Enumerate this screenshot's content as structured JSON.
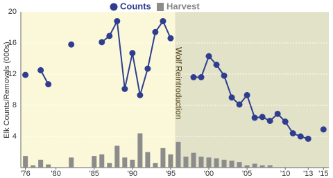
{
  "chart_data": {
    "type": "combo",
    "ylabel": "Elk Counts/Removals (000s)",
    "x": [
      1976,
      1977,
      1978,
      1979,
      1980,
      1981,
      1982,
      1983,
      1984,
      1985,
      1986,
      1987,
      1988,
      1989,
      1990,
      1991,
      1992,
      1993,
      1994,
      1995,
      1996,
      1997,
      1998,
      1999,
      2000,
      2001,
      2002,
      2003,
      2004,
      2005,
      2006,
      2007,
      2008,
      2009,
      2010,
      2011,
      2012,
      2013,
      2014,
      2015
    ],
    "series": [
      {
        "name": "Counts",
        "kind": "line",
        "color": "#2f3d91",
        "values": [
          11.9,
          null,
          12.5,
          10.7,
          null,
          null,
          15.8,
          null,
          null,
          null,
          16.1,
          16.9,
          18.8,
          10.1,
          14.7,
          9.3,
          12.7,
          17.4,
          18.8,
          16.6,
          null,
          null,
          11.6,
          11.6,
          14.3,
          13.2,
          11.8,
          9.0,
          8.1,
          9.3,
          6.4,
          6.5,
          6.0,
          6.9,
          5.9,
          4.4,
          4.0,
          3.7,
          null,
          4.9
        ]
      },
      {
        "name": "Harvest",
        "kind": "bar",
        "color": "#8c8c8c",
        "values": [
          1.5,
          0.3,
          1.0,
          0.4,
          null,
          null,
          1.3,
          null,
          null,
          1.5,
          1.7,
          0.6,
          2.8,
          1.3,
          1.0,
          4.4,
          2.0,
          0.6,
          2.5,
          1.7,
          3.3,
          1.4,
          1.9,
          1.4,
          1.3,
          1.2,
          1.0,
          0.9,
          0.7,
          0.3,
          0.5,
          0.3,
          0.3,
          null,
          null,
          null,
          null,
          null,
          null,
          null
        ]
      }
    ],
    "annotation": {
      "text": "Wolf Reintroduction",
      "x": 1995.6
    },
    "xlim": [
      1975.4,
      2015.7
    ],
    "xticks": [
      {
        "value": 1976,
        "label": "'76"
      },
      {
        "value": 1980,
        "label": "'80"
      },
      {
        "value": 1985,
        "label": "'85"
      },
      {
        "value": 1990,
        "label": "'90"
      },
      {
        "value": 1995,
        "label": "'95"
      },
      {
        "value": 2000,
        "label": "'00"
      },
      {
        "value": 2005,
        "label": "'05"
      },
      {
        "value": 2010,
        "label": "'10"
      },
      {
        "value": 2013,
        "label": "'13"
      },
      {
        "value": 2015,
        "label": "'15"
      }
    ],
    "ylim": [
      0,
      20
    ],
    "yticks": [
      4,
      8,
      12,
      16,
      20
    ],
    "grid": true
  }
}
